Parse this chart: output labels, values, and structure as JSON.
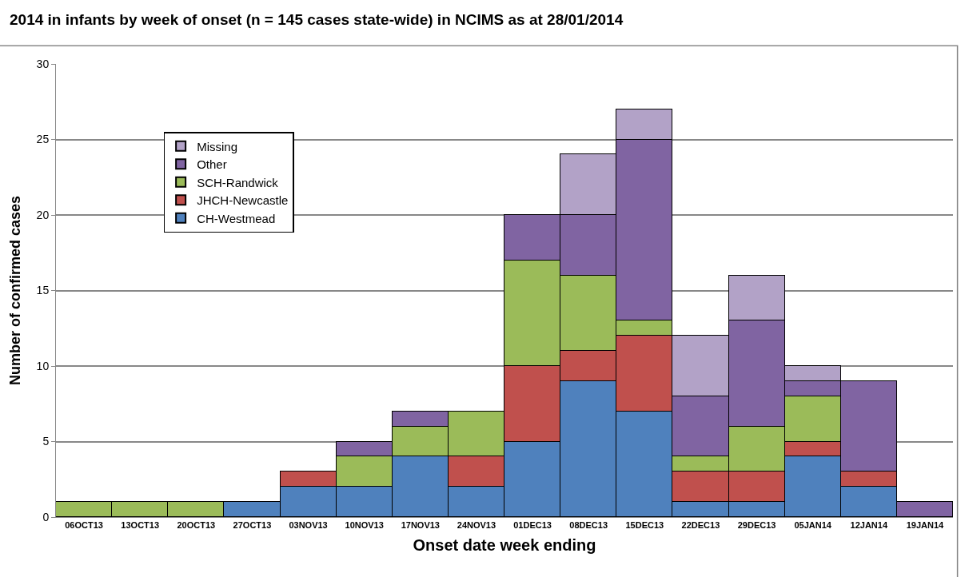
{
  "chart_data": {
    "type": "bar",
    "stacked": true,
    "title": "2014 in infants by week of onset (n = 145 cases state-wide) in NCIMS as at 28/01/2014",
    "xlabel": "Onset date week ending",
    "ylabel": "Number of confirmed cases",
    "categories": [
      "06OCT13",
      "13OCT13",
      "20OCT13",
      "27OCT13",
      "03NOV13",
      "10NOV13",
      "17NOV13",
      "24NOV13",
      "01DEC13",
      "08DEC13",
      "15DEC13",
      "22DEC13",
      "29DEC13",
      "05JAN14",
      "12JAN14",
      "19JAN14"
    ],
    "series": [
      {
        "name": "CH-Westmead",
        "color": "#4f81bd",
        "values": [
          0,
          0,
          0,
          1,
          2,
          2,
          4,
          2,
          5,
          9,
          7,
          1,
          1,
          4,
          2,
          0
        ]
      },
      {
        "name": "JHCH-Newcastle",
        "color": "#c0504d",
        "values": [
          0,
          0,
          0,
          0,
          1,
          0,
          0,
          2,
          5,
          2,
          5,
          2,
          2,
          1,
          1,
          0
        ]
      },
      {
        "name": "SCH-Randwick",
        "color": "#9bbb59",
        "values": [
          1,
          1,
          1,
          0,
          0,
          2,
          2,
          3,
          7,
          5,
          1,
          1,
          3,
          3,
          0,
          0
        ]
      },
      {
        "name": "Other",
        "color": "#8064a2",
        "values": [
          0,
          0,
          0,
          0,
          0,
          1,
          1,
          0,
          3,
          4,
          12,
          4,
          7,
          1,
          6,
          1
        ]
      },
      {
        "name": "Missing",
        "color": "#b2a2c7",
        "values": [
          0,
          0,
          0,
          0,
          0,
          0,
          0,
          0,
          0,
          4,
          2,
          4,
          3,
          1,
          0,
          0
        ]
      }
    ],
    "ylim": [
      0,
      30
    ],
    "yticks": [
      0,
      5,
      10,
      15,
      20,
      25,
      30
    ],
    "grid": "y",
    "legend": "top left"
  }
}
